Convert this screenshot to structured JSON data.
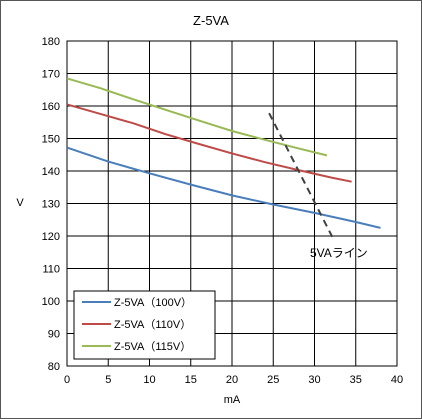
{
  "chart_data": {
    "type": "line",
    "title": "Z-5VA",
    "xlabel": "mA",
    "ylabel": "V",
    "xlim": [
      0,
      40
    ],
    "ylim": [
      80,
      180
    ],
    "xticks": [
      0,
      5,
      10,
      15,
      20,
      25,
      30,
      35,
      40
    ],
    "yticks": [
      80,
      90,
      100,
      110,
      120,
      130,
      140,
      150,
      160,
      170,
      180
    ],
    "grid": true,
    "legend_position": "bottom-left",
    "series": [
      {
        "name": "Z-5VA（100V）",
        "color": "#4a7ebb",
        "x": [
          0,
          5,
          10,
          15,
          20,
          25,
          30,
          35,
          38
        ],
        "y": [
          147.2,
          142.9,
          139.3,
          135.8,
          132.5,
          129.7,
          127.1,
          124.3,
          122.5
        ]
      },
      {
        "name": "Z-5VA（110V）",
        "color": "#be4b48",
        "x": [
          0,
          4,
          8,
          12,
          16,
          20,
          24,
          28,
          32,
          34.5
        ],
        "y": [
          160.5,
          157.6,
          154.7,
          151.3,
          148.3,
          145.4,
          142.7,
          140.3,
          138.0,
          136.7
        ]
      },
      {
        "name": "Z-5VA（115V）",
        "color": "#98b954",
        "x": [
          0,
          4,
          8,
          12,
          16,
          20,
          24,
          28,
          31.5
        ],
        "y": [
          168.5,
          165.5,
          162.1,
          158.8,
          155.5,
          152.3,
          149.6,
          147.0,
          144.8
        ]
      }
    ],
    "reference_line": {
      "label": "5VAライン",
      "style": "dashed",
      "color": "#404040",
      "x": [
        24.5,
        32.2
      ],
      "y": [
        157.8,
        119.5
      ]
    }
  }
}
